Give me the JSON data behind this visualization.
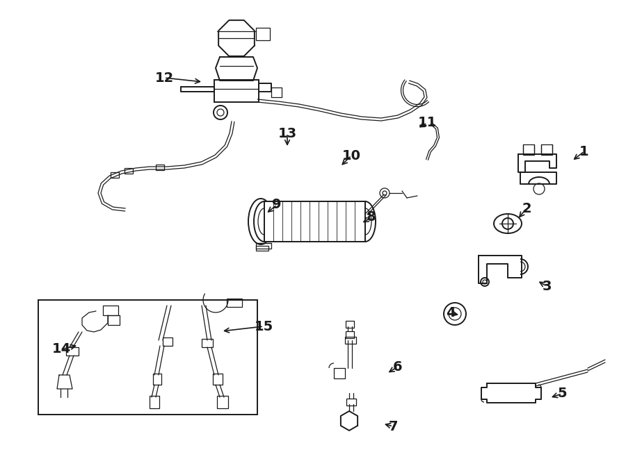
{
  "bg_color": "#ffffff",
  "lc": "#1a1a1a",
  "lw": 1.4,
  "lw_t": 0.9,
  "fs": 14,
  "labels": [
    "1",
    "2",
    "3",
    "4",
    "5",
    "6",
    "7",
    "8",
    "9",
    "10",
    "11",
    "12",
    "13",
    "14",
    "15"
  ],
  "lx": [
    840,
    757,
    786,
    648,
    808,
    572,
    565,
    534,
    398,
    505,
    614,
    236,
    413,
    88,
    379
  ],
  "ly": [
    218,
    300,
    412,
    451,
    567,
    528,
    614,
    313,
    295,
    224,
    177,
    112,
    192,
    503,
    470
  ],
  "tx": [
    822,
    744,
    772,
    662,
    790,
    556,
    550,
    519,
    382,
    489,
    600,
    292,
    413,
    113,
    318
  ],
  "ty": [
    232,
    316,
    404,
    454,
    573,
    538,
    610,
    322,
    308,
    240,
    185,
    118,
    213,
    497,
    477
  ],
  "tax": [
    "left",
    "left",
    "left",
    "left",
    "left",
    "left",
    "left",
    "left",
    "left",
    "left",
    "left",
    "right",
    "right",
    "right",
    "right"
  ],
  "tay": [
    "top",
    "top",
    "top",
    "top",
    "top",
    "top",
    "top",
    "top",
    "top",
    "top",
    "top",
    "top",
    "top",
    "top",
    "top"
  ]
}
